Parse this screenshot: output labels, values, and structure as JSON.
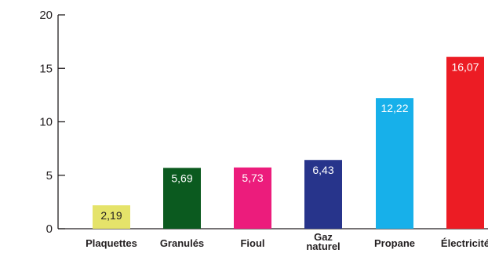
{
  "chart_data": {
    "type": "bar",
    "categories": [
      "Plaquettes",
      "Granulés",
      "Fioul",
      "Gaz naturel",
      "Propane",
      "Électricité"
    ],
    "values": [
      2.19,
      5.69,
      5.73,
      6.43,
      12.22,
      16.07
    ],
    "value_labels": [
      "2,19",
      "5,69",
      "5,73",
      "6,43",
      "12,22",
      "16,07"
    ],
    "colors": [
      "#e5e36a",
      "#0b5a1f",
      "#ec1c7c",
      "#27348b",
      "#17b0ea",
      "#ec1c24"
    ],
    "label_colors": [
      "#231f20",
      "#ffffff",
      "#ffffff",
      "#ffffff",
      "#ffffff",
      "#ffffff"
    ],
    "title": "",
    "xlabel": "",
    "ylabel": "",
    "ylim": [
      0,
      20
    ],
    "yticks": [
      0,
      5,
      10,
      15,
      20
    ],
    "grid": false,
    "legend": "none"
  }
}
